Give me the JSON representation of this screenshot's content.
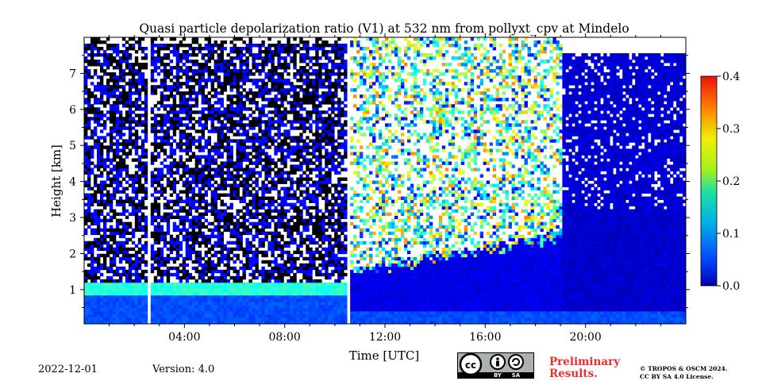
{
  "chart_data": {
    "type": "heatmap",
    "title": "Quasi particle depolarization ratio (V1) at 532 nm from pollyxt_cpv at Mindelo",
    "xlabel": "Time [UTC]",
    "ylabel": "Height [km]",
    "xlim_hours": [
      0,
      24
    ],
    "ylim_km": [
      0.05,
      8
    ],
    "x_ticks": [
      {
        "value": 4,
        "label": "04:00"
      },
      {
        "value": 8,
        "label": "08:00"
      },
      {
        "value": 12,
        "label": "12:00"
      },
      {
        "value": 16,
        "label": "16:00"
      },
      {
        "value": 20,
        "label": "20:00"
      }
    ],
    "y_ticks": [
      {
        "value": 1,
        "label": "1"
      },
      {
        "value": 2,
        "label": "2"
      },
      {
        "value": 3,
        "label": "3"
      },
      {
        "value": 4,
        "label": "4"
      },
      {
        "value": 5,
        "label": "5"
      },
      {
        "value": 6,
        "label": "6"
      },
      {
        "value": 7,
        "label": "7"
      }
    ],
    "colorbar": {
      "range": [
        0,
        0.4
      ],
      "ticks": [
        {
          "value": 0.0,
          "label": "0.0"
        },
        {
          "value": 0.1,
          "label": "0.1"
        },
        {
          "value": 0.2,
          "label": "0.2"
        },
        {
          "value": 0.3,
          "label": "0.3"
        },
        {
          "value": 0.4,
          "label": "0.4"
        }
      ],
      "colormap": "jet"
    },
    "features": {
      "data_gaps_hours": [
        2.5,
        10.5
      ],
      "cloud_period_hours": [
        0,
        10.5
      ],
      "layer_height_km": 1.0,
      "layer_value": 0.15,
      "dust_layer_value_range": [
        0.05,
        0.3
      ],
      "dust_period_hours": [
        10.5,
        19
      ]
    }
  },
  "footer": {
    "date": "2022-12-01",
    "version": "Version: 4.0",
    "preliminary_line1": "Preliminary",
    "preliminary_line2": "Results.",
    "copyright_line1": "© TROPOS & OSCM 2024.",
    "copyright_line2": "CC BY SA 4.0 License.",
    "cc_labels": [
      "BY",
      "SA"
    ]
  },
  "colors": {
    "background": "#ffffff",
    "preliminary": "#e8302f",
    "badge_bg": "#aab2ab"
  }
}
